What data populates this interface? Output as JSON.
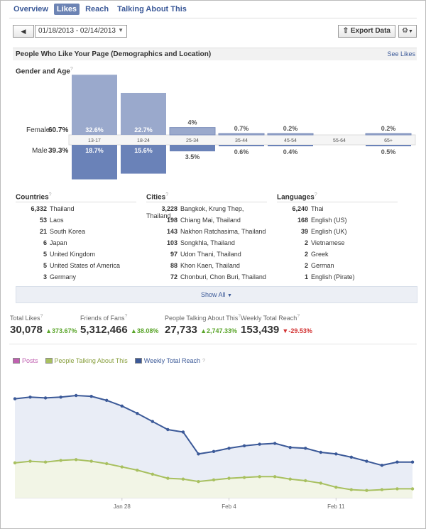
{
  "nav": {
    "tabs": [
      "Overview",
      "Likes",
      "Reach",
      "Talking About This"
    ],
    "active": 1
  },
  "toolbar": {
    "prev_icon": "left-arrow-icon",
    "date_range": "01/18/2013 - 02/14/2013",
    "export_label": "Export Data",
    "gear_icon": "gear-icon"
  },
  "panel": {
    "title": "People Who Like Your Page (Demographics and Location)",
    "see_likes": "See Likes"
  },
  "gender_age": {
    "title": "Gender and Age",
    "female_label": "Female",
    "female_pct": "60.7%",
    "male_label": "Male",
    "male_pct": "39.3%",
    "groups": [
      "13-17",
      "18-24",
      "25-34",
      "35-44",
      "45-54",
      "55-64",
      "65+"
    ],
    "female": [
      32.6,
      22.7,
      4,
      0.7,
      0.2,
      0,
      0.2
    ],
    "male": [
      18.7,
      15.6,
      3.5,
      0.6,
      0.4,
      0,
      0.5
    ],
    "female_labels": [
      "32.6%",
      "22.7%",
      "4%",
      "0.7%",
      "0.2%",
      "",
      "0.2%"
    ],
    "male_labels": [
      "18.7%",
      "15.6%",
      "3.5%",
      "0.6%",
      "0.4%",
      "",
      "0.5%"
    ],
    "colors": {
      "female": "#9aa9cc",
      "male": "#6a82b8"
    }
  },
  "countries": {
    "title": "Countries",
    "rows": [
      [
        "6,332",
        "Thailand"
      ],
      [
        "53",
        "Laos"
      ],
      [
        "21",
        "South Korea"
      ],
      [
        "6",
        "Japan"
      ],
      [
        "5",
        "United Kingdom"
      ],
      [
        "5",
        "United States of America"
      ],
      [
        "3",
        "Germany"
      ]
    ]
  },
  "cities": {
    "title": "Cities",
    "rows": [
      [
        "3,228",
        "Bangkok, Krung Thep, Thailand"
      ],
      [
        "198",
        "Chiang Mai, Thailand"
      ],
      [
        "143",
        "Nakhon Ratchasima, Thailand"
      ],
      [
        "103",
        "Songkhla, Thailand"
      ],
      [
        "97",
        "Udon Thani, Thailand"
      ],
      [
        "88",
        "Khon Kaen, Thailand"
      ],
      [
        "72",
        "Chonburi, Chon Buri, Thailand"
      ]
    ]
  },
  "languages": {
    "title": "Languages",
    "rows": [
      [
        "6,240",
        "Thai"
      ],
      [
        "168",
        "English (US)"
      ],
      [
        "39",
        "English (UK)"
      ],
      [
        "2",
        "Vietnamese"
      ],
      [
        "2",
        "Greek"
      ],
      [
        "2",
        "German"
      ],
      [
        "1",
        "English (Pirate)"
      ]
    ]
  },
  "show_all": "Show All",
  "metrics": [
    {
      "title": "Total Likes",
      "value": "30,078",
      "change": "373.67%",
      "dir": "up"
    },
    {
      "title": "Friends of Fans",
      "value": "5,312,466",
      "change": "38.08%",
      "dir": "up"
    },
    {
      "title": "People Talking About This",
      "value": "27,733",
      "change": "2,747.33%",
      "dir": "up"
    },
    {
      "title": "Weekly Total Reach",
      "value": "153,439",
      "change": "-29.53%",
      "dir": "down"
    }
  ],
  "legend": [
    {
      "name": "Posts",
      "color": "#c060b0"
    },
    {
      "name": "People Talking About This",
      "color": "#a8c060"
    },
    {
      "name": "Weekly Total Reach",
      "color": "#3b5998"
    }
  ],
  "chart_data": {
    "type": "line",
    "x_ticks": [
      "Jan 28",
      "Feb 4",
      "Feb 11"
    ],
    "series": [
      {
        "name": "Weekly Total Reach",
        "color": "#3b5998",
        "fill": "#e9edf6",
        "values": [
          568,
          566,
          567,
          566,
          564,
          565,
          570,
          577,
          586,
          596,
          606,
          609,
          636,
          633,
          629,
          626,
          624,
          623,
          628,
          629,
          634,
          636,
          640,
          645,
          650,
          646,
          646
        ]
      },
      {
        "name": "People Talking About This",
        "color": "#a8c060",
        "fill": "#f2f5e6",
        "values": [
          647,
          645,
          646,
          644,
          643,
          645,
          648,
          652,
          656,
          661,
          666,
          667,
          670,
          668,
          666,
          665,
          664,
          664,
          667,
          669,
          672,
          677,
          680,
          681,
          680,
          679,
          679
        ]
      }
    ]
  }
}
